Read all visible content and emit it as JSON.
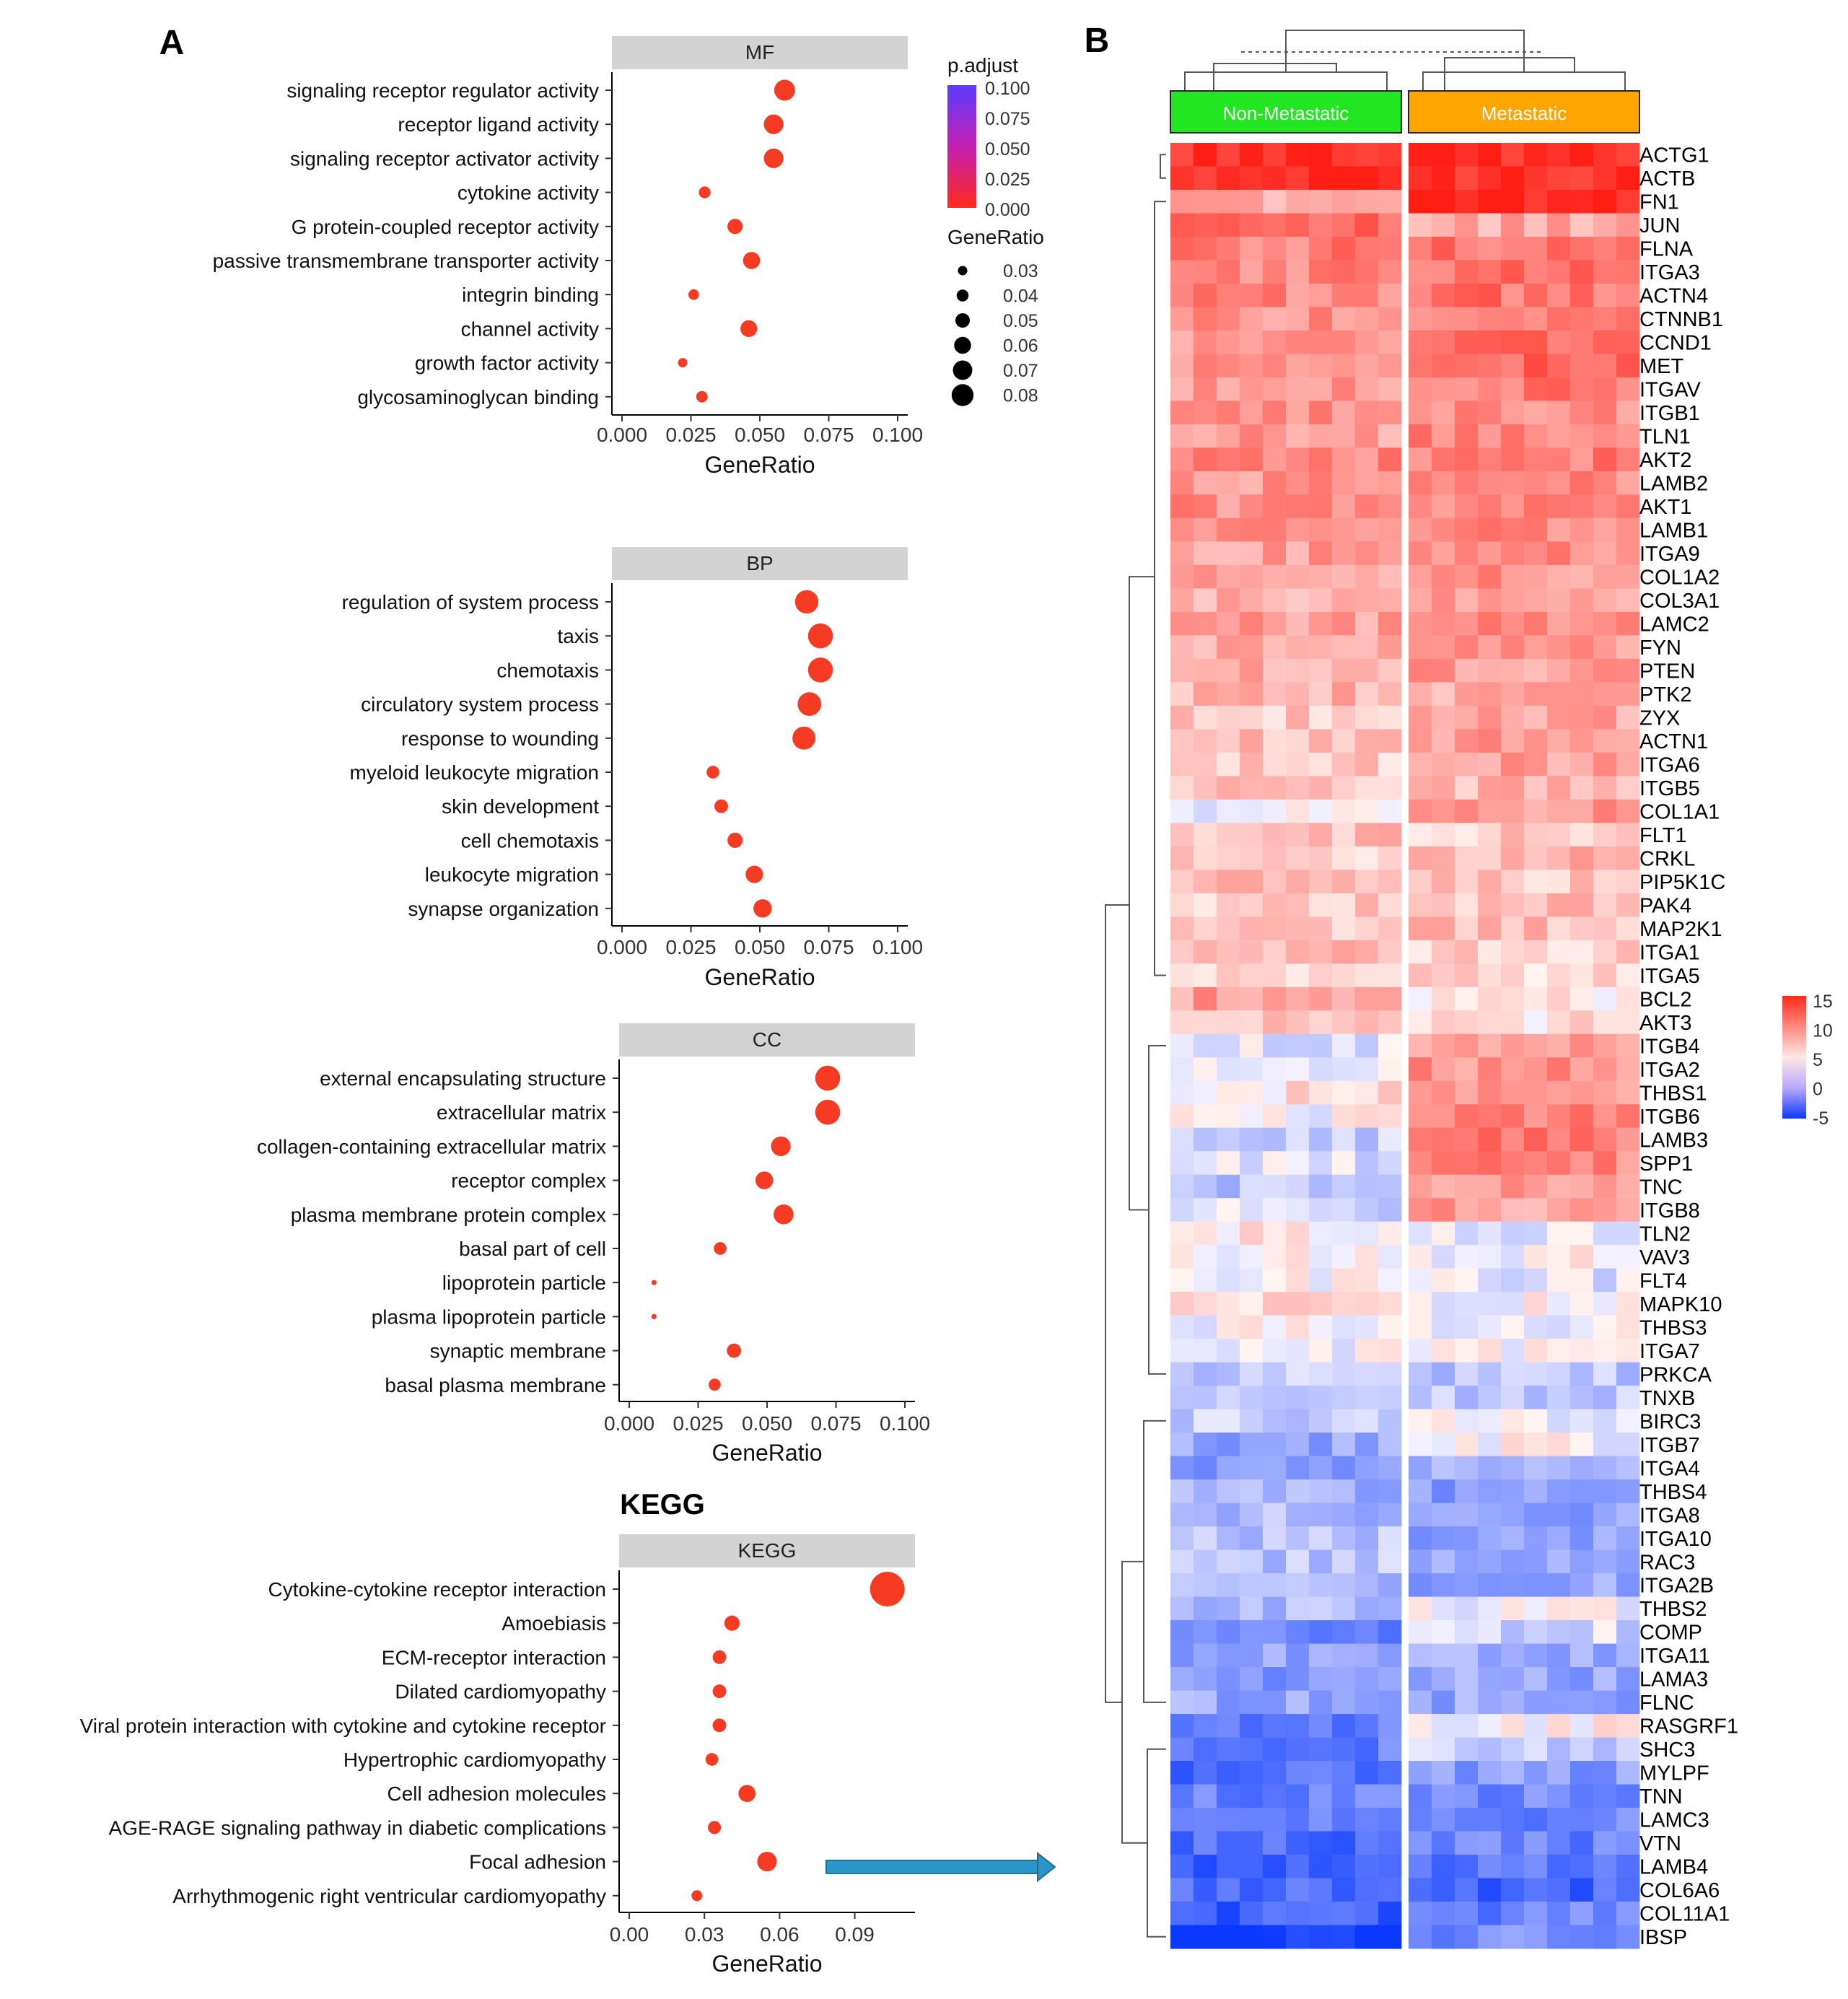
{
  "panel_labels": {
    "a": "A",
    "b": "B"
  },
  "kegg_heading": "KEGG",
  "legend": {
    "padjust_title": "p.adjust",
    "padjust_ticks": [
      "0.100",
      "0.075",
      "0.050",
      "0.025",
      "0.000"
    ],
    "padjust_values": [
      0.1,
      0.075,
      0.05,
      0.025,
      0.0
    ],
    "generatio_title": "GeneRatio",
    "generatio_ticks": [
      "0.03",
      "0.04",
      "0.05",
      "0.06",
      "0.07",
      "0.08"
    ],
    "generatio_values": [
      0.03,
      0.04,
      0.05,
      0.06,
      0.07,
      0.08
    ],
    "heat_ticks": [
      "15",
      "10",
      "5",
      "0",
      "-5"
    ],
    "heat_values": [
      15,
      10,
      5,
      0,
      -5
    ],
    "colors": {
      "low_padj": "#ff2a1a",
      "mid_padj": "#d51aa0",
      "high_padj": "#5b3cff",
      "dot": "#f53b21",
      "facet_strip": "#d3d3d3",
      "non_metastatic": "#22e622",
      "metastatic": "#ffa500",
      "heat_high": "#ff2a1a",
      "heat_mid": "#ffffff",
      "heat_low": "#0a38ff",
      "arrow": "#2b96c8"
    }
  },
  "chart_data": [
    {
      "type": "scatter",
      "facet": "MF",
      "xlabel": "GeneRatio",
      "xlim": [
        0,
        0.1
      ],
      "x_ticks": [
        "0.000",
        "0.025",
        "0.050",
        "0.075",
        "0.100"
      ],
      "categories": [
        "signaling receptor regulator activity",
        "receptor ligand activity",
        "signaling receptor activator activity",
        "cytokine activity",
        "G protein-coupled receptor activity",
        "passive transmembrane transporter activity",
        "integrin binding",
        "channel activity",
        "growth factor activity",
        "glycosaminoglycan binding"
      ],
      "values": [
        0.059,
        0.055,
        0.055,
        0.03,
        0.041,
        0.047,
        0.026,
        0.046,
        0.022,
        0.029
      ]
    },
    {
      "type": "scatter",
      "facet": "BP",
      "xlabel": "GeneRatio",
      "xlim": [
        0,
        0.1
      ],
      "x_ticks": [
        "0.000",
        "0.025",
        "0.050",
        "0.075",
        "0.100"
      ],
      "categories": [
        "regulation of system process",
        "taxis",
        "chemotaxis",
        "circulatory system process",
        "response to wounding",
        "myeloid leukocyte migration",
        "skin development",
        "cell chemotaxis",
        "leukocyte migration",
        "synapse organization"
      ],
      "values": [
        0.067,
        0.072,
        0.072,
        0.068,
        0.066,
        0.033,
        0.036,
        0.041,
        0.048,
        0.051
      ]
    },
    {
      "type": "scatter",
      "facet": "CC",
      "xlabel": "GeneRatio",
      "xlim": [
        0,
        0.1
      ],
      "x_ticks": [
        "0.000",
        "0.025",
        "0.050",
        "0.075",
        "0.100"
      ],
      "categories": [
        "external encapsulating structure",
        "extracellular matrix",
        "collagen-containing extracellular matrix",
        "receptor complex",
        "plasma membrane protein complex",
        "basal part of cell",
        "lipoprotein particle",
        "plasma lipoprotein particle",
        "synaptic membrane",
        "basal plasma membrane"
      ],
      "values": [
        0.072,
        0.072,
        0.055,
        0.049,
        0.056,
        0.033,
        0.009,
        0.009,
        0.038,
        0.031
      ]
    },
    {
      "type": "scatter",
      "facet": "KEGG",
      "xlabel": "GeneRatio",
      "xlim": [
        0,
        0.11
      ],
      "x_ticks": [
        "0.00",
        "0.03",
        "0.06",
        "0.09"
      ],
      "x_tick_values": [
        0,
        0.03,
        0.06,
        0.09
      ],
      "categories": [
        "Cytokine-cytokine receptor interaction",
        "Amoebiasis",
        "ECM-receptor interaction",
        "Dilated cardiomyopathy",
        "Viral protein interaction with cytokine and cytokine receptor",
        "Hypertrophic cardiomyopathy",
        "Cell adhesion molecules",
        "AGE-RAGE signaling pathway in diabetic complications",
        "Focal adhesion",
        "Arrhythmogenic right ventricular cardiomyopathy"
      ],
      "values": [
        0.103,
        0.041,
        0.036,
        0.036,
        0.036,
        0.033,
        0.047,
        0.034,
        0.055,
        0.027
      ]
    },
    {
      "type": "heatmap",
      "title": "",
      "groups": [
        {
          "name": "Non-Metastatic",
          "n": 10
        },
        {
          "name": "Metastatic",
          "n": 10
        }
      ],
      "value_range": [
        -5,
        15
      ],
      "rows": [
        "ACTG1",
        "ACTB",
        "FN1",
        "JUN",
        "FLNA",
        "ITGA3",
        "ACTN4",
        "CTNNB1",
        "CCND1",
        "MET",
        "ITGAV",
        "ITGB1",
        "TLN1",
        "AKT2",
        "LAMB2",
        "AKT1",
        "LAMB1",
        "ITGA9",
        "COL1A2",
        "COL3A1",
        "LAMC2",
        "FYN",
        "PTEN",
        "PTK2",
        "ZYX",
        "ACTN1",
        "ITGA6",
        "ITGB5",
        "COL1A1",
        "FLT1",
        "CRKL",
        "PIP5K1C",
        "PAK4",
        "MAP2K1",
        "ITGA1",
        "ITGA5",
        "BCL2",
        "AKT3",
        "ITGB4",
        "ITGA2",
        "THBS1",
        "ITGB6",
        "LAMB3",
        "SPP1",
        "TNC",
        "ITGB8",
        "TLN2",
        "VAV3",
        "FLT4",
        "MAPK10",
        "THBS3",
        "ITGA7",
        "PRKCA",
        "TNXB",
        "BIRC3",
        "ITGB7",
        "ITGA4",
        "THBS4",
        "ITGA8",
        "ITGA10",
        "RAC3",
        "ITGA2B",
        "THBS2",
        "COMP",
        "ITGA11",
        "LAMA3",
        "FLNC",
        "RASGRF1",
        "SHC3",
        "MYLPF",
        "TNN",
        "LAMC3",
        "VTN",
        "LAMB4",
        "COL6A6",
        "COL11A1",
        "IBSP"
      ],
      "row_means_non_metastatic": [
        14.5,
        14.5,
        8.5,
        11.5,
        10.5,
        10,
        10,
        9.5,
        9,
        9.2,
        9.5,
        9.5,
        9,
        10,
        9.5,
        9.8,
        10,
        9,
        8.5,
        8,
        9,
        8.5,
        8.5,
        8,
        7,
        7.5,
        7,
        7.5,
        5,
        7.5,
        7,
        7.5,
        7,
        7,
        7.5,
        7,
        9,
        7.8,
        4,
        4,
        6,
        5,
        3,
        4,
        2.5,
        3.5,
        5.5,
        5,
        5.5,
        6,
        5,
        4.5,
        3,
        3,
        3,
        1,
        0.5,
        1.5,
        2,
        2.5,
        2.5,
        2,
        2,
        -1,
        0.5,
        0,
        1,
        -1.5,
        -1,
        -2,
        -1,
        -1.5,
        -2,
        -2.5,
        -2,
        -3,
        -5
      ],
      "row_means_metastatic": [
        14.5,
        14.5,
        14.5,
        8.5,
        11,
        11,
        11,
        10.5,
        11,
        11.5,
        10.5,
        10,
        10,
        10.5,
        10,
        10.5,
        10,
        10,
        9.5,
        9,
        10,
        9,
        9,
        8.5,
        8.5,
        9,
        9,
        8,
        9.5,
        7,
        8,
        7,
        7.5,
        7.5,
        6.5,
        6.5,
        6,
        6,
        9.5,
        9.5,
        9.5,
        10,
        10.5,
        10,
        9.5,
        9,
        4.5,
        5,
        4,
        5,
        4.5,
        5,
        2.5,
        2.5,
        4.5,
        5,
        1,
        0.5,
        0.5,
        0.5,
        1,
        1,
        4.5,
        3.5,
        1.5,
        1,
        1,
        5.5,
        3,
        0.5,
        -0.5,
        -1,
        -1,
        -1.5,
        -2.5,
        -1,
        -0.5
      ]
    }
  ]
}
